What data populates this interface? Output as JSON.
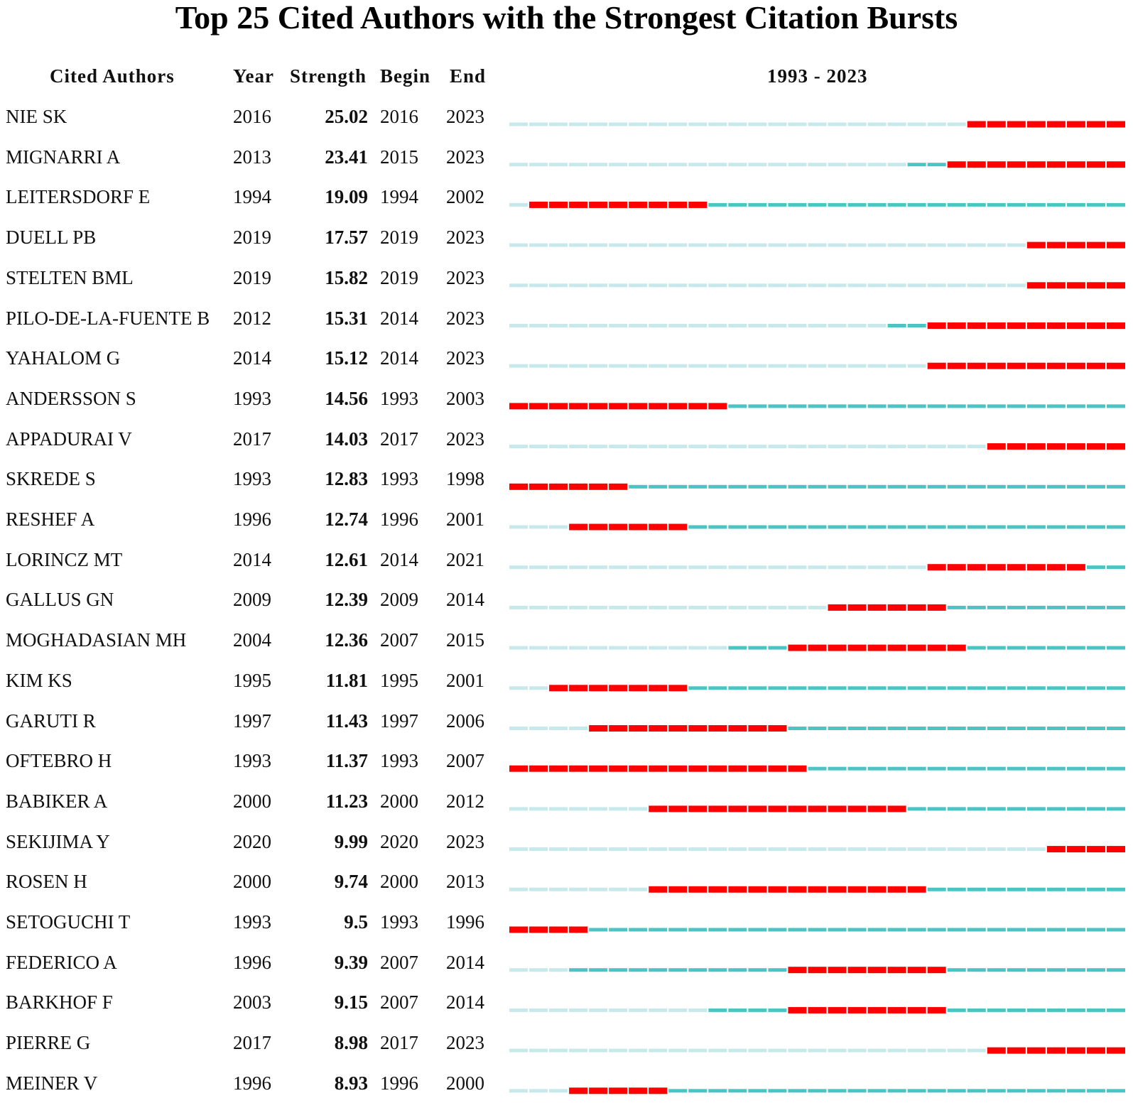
{
  "chart_data": {
    "type": "table",
    "title": "Top 25 Cited Authors with the Strongest Citation Bursts",
    "columns": [
      "Cited Authors",
      "Year",
      "Strength",
      "Begin",
      "End",
      "1993 - 2023"
    ],
    "timeline": {
      "start": 1993,
      "end": 2023
    },
    "colors": {
      "burst": "#ff0000",
      "active": "#4dc4c4",
      "inactive": "#c8e9ec"
    },
    "rows": [
      {
        "author": "NIE SK",
        "year": "2016",
        "strength": "25.02",
        "begin": "2016",
        "end": "2023"
      },
      {
        "author": "MIGNARRI A",
        "year": "2013",
        "strength": "23.41",
        "begin": "2015",
        "end": "2023"
      },
      {
        "author": "LEITERSDORF E",
        "year": "1994",
        "strength": "19.09",
        "begin": "1994",
        "end": "2002"
      },
      {
        "author": "DUELL PB",
        "year": "2019",
        "strength": "17.57",
        "begin": "2019",
        "end": "2023"
      },
      {
        "author": "STELTEN BML",
        "year": "2019",
        "strength": "15.82",
        "begin": "2019",
        "end": "2023"
      },
      {
        "author": "PILO-DE-LA-FUENTE B",
        "year": "2012",
        "strength": "15.31",
        "begin": "2014",
        "end": "2023"
      },
      {
        "author": "YAHALOM G",
        "year": "2014",
        "strength": "15.12",
        "begin": "2014",
        "end": "2023"
      },
      {
        "author": "ANDERSSON S",
        "year": "1993",
        "strength": "14.56",
        "begin": "1993",
        "end": "2003"
      },
      {
        "author": "APPADURAI V",
        "year": "2017",
        "strength": "14.03",
        "begin": "2017",
        "end": "2023"
      },
      {
        "author": "SKREDE S",
        "year": "1993",
        "strength": "12.83",
        "begin": "1993",
        "end": "1998"
      },
      {
        "author": "RESHEF A",
        "year": "1996",
        "strength": "12.74",
        "begin": "1996",
        "end": "2001"
      },
      {
        "author": "LORINCZ MT",
        "year": "2014",
        "strength": "12.61",
        "begin": "2014",
        "end": "2021"
      },
      {
        "author": "GALLUS GN",
        "year": "2009",
        "strength": "12.39",
        "begin": "2009",
        "end": "2014"
      },
      {
        "author": "MOGHADASIAN MH",
        "year": "2004",
        "strength": "12.36",
        "begin": "2007",
        "end": "2015"
      },
      {
        "author": "KIM KS",
        "year": "1995",
        "strength": "11.81",
        "begin": "1995",
        "end": "2001"
      },
      {
        "author": "GARUTI R",
        "year": "1997",
        "strength": "11.43",
        "begin": "1997",
        "end": "2006"
      },
      {
        "author": "OFTEBRO H",
        "year": "1993",
        "strength": "11.37",
        "begin": "1993",
        "end": "2007"
      },
      {
        "author": "BABIKER A",
        "year": "2000",
        "strength": "11.23",
        "begin": "2000",
        "end": "2012"
      },
      {
        "author": "SEKIJIMA Y",
        "year": "2020",
        "strength": "9.99",
        "begin": "2020",
        "end": "2023"
      },
      {
        "author": "ROSEN H",
        "year": "2000",
        "strength": "9.74",
        "begin": "2000",
        "end": "2013"
      },
      {
        "author": "SETOGUCHI T",
        "year": "1993",
        "strength": "9.5",
        "begin": "1993",
        "end": "1996"
      },
      {
        "author": "FEDERICO A",
        "year": "1996",
        "strength": "9.39",
        "begin": "2007",
        "end": "2014"
      },
      {
        "author": "BARKHOF F",
        "year": "2003",
        "strength": "9.15",
        "begin": "2007",
        "end": "2014"
      },
      {
        "author": "PIERRE G",
        "year": "2017",
        "strength": "8.98",
        "begin": "2017",
        "end": "2023"
      },
      {
        "author": "MEINER V",
        "year": "1996",
        "strength": "8.93",
        "begin": "1996",
        "end": "2000"
      }
    ]
  }
}
